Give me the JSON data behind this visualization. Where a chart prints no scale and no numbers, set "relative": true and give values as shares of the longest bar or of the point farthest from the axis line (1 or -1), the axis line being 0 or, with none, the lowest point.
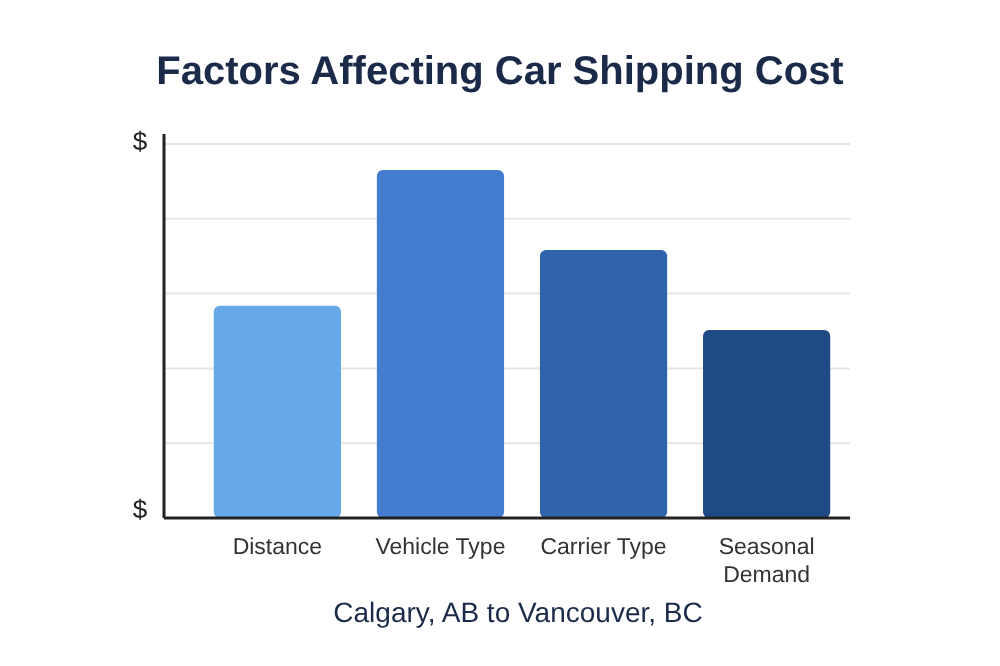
{
  "chart_data": {
    "type": "bar",
    "title": "Factors Affecting Car Shipping Cost",
    "xlabel": "Calgary, AB to Vancouver, BC",
    "categories": [
      "Distance",
      "Vehicle Type",
      "Carrier Type",
      "Seasonal Demand"
    ],
    "values": [
      0.61,
      1,
      0.77,
      0.54
    ],
    "colors": [
      "#67a9e8",
      "#447dd0",
      "#2f63ab",
      "#1f4a86"
    ],
    "relative": true,
    "grid": true,
    "annotations": [
      "$",
      "$"
    ]
  }
}
